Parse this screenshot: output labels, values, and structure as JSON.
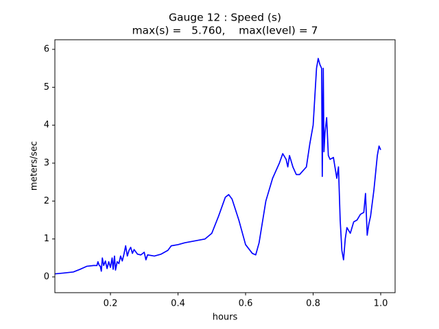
{
  "chart_data": {
    "type": "line",
    "title": "Gauge 12 : Speed (s)",
    "subtitle": "max(s) =   5.760,    max(level) = 7",
    "xlabel": "hours",
    "ylabel": "meters/sec",
    "xlim": [
      0.0355,
      1.0426
    ],
    "ylim": [
      -0.416,
      6.253
    ],
    "xticks": [
      0.2,
      0.4,
      0.6,
      0.8,
      {
        "value": 1,
        "label": "1.0"
      }
    ],
    "yticks": [
      0,
      1,
      2,
      3,
      4,
      5,
      6
    ],
    "series": [
      {
        "color": "#0000ff",
        "x": [
          0.0355,
          0.06,
          0.09,
          0.11,
          0.13,
          0.15,
          0.16,
          0.163,
          0.167,
          0.17,
          0.173,
          0.176,
          0.18,
          0.185,
          0.19,
          0.195,
          0.2,
          0.205,
          0.208,
          0.212,
          0.215,
          0.22,
          0.225,
          0.23,
          0.235,
          0.24,
          0.245,
          0.25,
          0.255,
          0.26,
          0.265,
          0.27,
          0.28,
          0.29,
          0.3,
          0.305,
          0.31,
          0.33,
          0.35,
          0.37,
          0.38,
          0.4,
          0.42,
          0.45,
          0.48,
          0.5,
          0.52,
          0.54,
          0.55,
          0.56,
          0.58,
          0.6,
          0.62,
          0.63,
          0.64,
          0.66,
          0.68,
          0.7,
          0.71,
          0.72,
          0.725,
          0.73,
          0.74,
          0.75,
          0.76,
          0.77,
          0.78,
          0.79,
          0.8,
          0.81,
          0.815,
          0.82,
          0.825,
          0.827,
          0.83,
          0.832,
          0.835,
          0.84,
          0.845,
          0.85,
          0.86,
          0.87,
          0.875,
          0.88,
          0.885,
          0.89,
          0.895,
          0.9,
          0.91,
          0.92,
          0.93,
          0.94,
          0.95,
          0.955,
          0.96,
          0.965,
          0.97,
          0.98,
          0.99,
          0.995,
          1.0
        ],
        "values": [
          0.08,
          0.1,
          0.13,
          0.2,
          0.28,
          0.3,
          0.3,
          0.4,
          0.3,
          0.28,
          0.15,
          0.5,
          0.3,
          0.42,
          0.22,
          0.4,
          0.25,
          0.5,
          0.2,
          0.55,
          0.18,
          0.4,
          0.35,
          0.55,
          0.42,
          0.6,
          0.82,
          0.55,
          0.7,
          0.78,
          0.62,
          0.72,
          0.6,
          0.58,
          0.65,
          0.45,
          0.58,
          0.55,
          0.6,
          0.7,
          0.82,
          0.85,
          0.9,
          0.95,
          1.0,
          1.15,
          1.6,
          2.1,
          2.17,
          2.05,
          1.5,
          0.85,
          0.62,
          0.58,
          0.9,
          2.0,
          2.6,
          3.0,
          3.25,
          3.1,
          2.9,
          3.2,
          2.9,
          2.7,
          2.7,
          2.8,
          2.9,
          3.5,
          4.0,
          5.5,
          5.76,
          5.6,
          5.5,
          2.65,
          5.5,
          3.3,
          3.8,
          4.2,
          3.2,
          3.1,
          3.15,
          2.6,
          2.9,
          1.5,
          0.7,
          0.45,
          1.0,
          1.3,
          1.15,
          1.45,
          1.5,
          1.65,
          1.7,
          2.2,
          1.1,
          1.4,
          1.6,
          2.3,
          3.2,
          3.45,
          3.35
        ]
      }
    ]
  }
}
